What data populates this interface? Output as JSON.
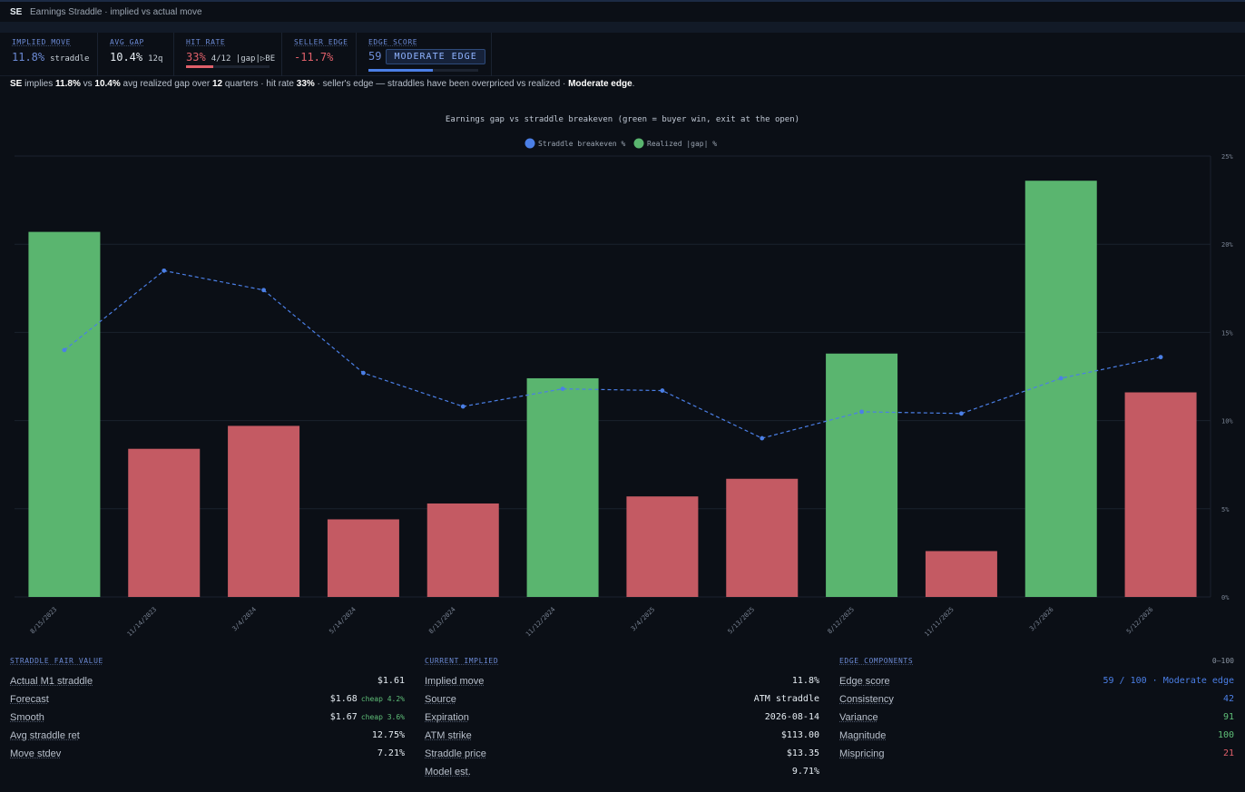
{
  "header": {
    "ticker": "SE",
    "title": "Earnings Straddle · implied vs actual move"
  },
  "metrics": {
    "implied_move": {
      "label": "IMPLIED MOVE",
      "value": "11.8%",
      "sub": "straddle"
    },
    "avg_gap": {
      "label": "AVG GAP",
      "value": "10.4%",
      "sub": "12q"
    },
    "hit_rate": {
      "label": "HIT RATE",
      "value": "33%",
      "sub": "4/12 |gap|▷BE",
      "fraction": 0.33
    },
    "seller_edge": {
      "label": "SELLER EDGE",
      "value": "-11.7%"
    },
    "edge_score": {
      "label": "EDGE SCORE",
      "value": "59",
      "badge": "MODERATE EDGE",
      "fraction": 0.59
    }
  },
  "summary": {
    "t1": "SE",
    "t2": " implies ",
    "t3": "11.8%",
    "t4": " vs ",
    "t5": "10.4%",
    "t6": " avg realized gap over ",
    "t7": "12",
    "t8": " quarters · hit rate ",
    "t9": "33%",
    "t10": " · seller's edge — straddles have been overpriced vs realized · ",
    "t11": "Moderate edge",
    "t12": "."
  },
  "colors": {
    "win": "#5ab56f",
    "loss": "#c45a63",
    "line": "#4b7fe6"
  },
  "chart_data": {
    "type": "bar",
    "title": "Earnings gap vs straddle breakeven (green = buyer win, exit at the open)",
    "categories": [
      "8/15/2023",
      "11/14/2023",
      "3/4/2024",
      "5/14/2024",
      "8/13/2024",
      "11/12/2024",
      "3/4/2025",
      "5/13/2025",
      "8/12/2025",
      "11/11/2025",
      "3/3/2026",
      "5/12/2026"
    ],
    "series": [
      {
        "name": "Straddle breakeven %",
        "type": "line",
        "values": [
          14.0,
          18.5,
          17.4,
          12.7,
          10.8,
          11.8,
          11.7,
          9.0,
          10.5,
          10.4,
          12.4,
          13.6
        ]
      },
      {
        "name": "Realized |gap| %",
        "type": "bar",
        "values": [
          20.7,
          8.4,
          9.7,
          4.4,
          5.3,
          12.4,
          5.7,
          6.7,
          13.8,
          2.6,
          23.6,
          11.6
        ]
      }
    ],
    "ylim": [
      0,
      25
    ],
    "yticks": [
      "0%",
      "5%",
      "10%",
      "15%",
      "20%",
      "25%"
    ],
    "legend": "top-center",
    "grid": true
  },
  "panels": {
    "fair_value": {
      "title": "STRADDLE FAIR VALUE",
      "rows": [
        {
          "k": "Actual M1 straddle",
          "v": "$1.61",
          "note": ""
        },
        {
          "k": "Forecast",
          "v": "$1.68",
          "note": "cheap 4.2%"
        },
        {
          "k": "Smooth",
          "v": "$1.67",
          "note": "cheap 3.6%"
        },
        {
          "k": "Avg straddle ret",
          "v": "12.75%",
          "note": ""
        },
        {
          "k": "Move stdev",
          "v": "7.21%",
          "note": ""
        }
      ]
    },
    "current": {
      "title": "CURRENT IMPLIED",
      "rows": [
        {
          "k": "Implied move",
          "v": "11.8%"
        },
        {
          "k": "Source",
          "v": "ATM straddle"
        },
        {
          "k": "Expiration",
          "v": "2026-08-14"
        },
        {
          "k": "ATM strike",
          "v": "$113.00"
        },
        {
          "k": "Straddle price",
          "v": "$13.35"
        },
        {
          "k": "Model est.",
          "v": "9.71%"
        }
      ]
    },
    "edge": {
      "title": "EDGE COMPONENTS",
      "note": "0–100",
      "rows": [
        {
          "k": "Edge score",
          "v": "59 / 100 · Moderate edge",
          "color": "#4b7fe6"
        },
        {
          "k": "Consistency",
          "v": "42",
          "color": "#4b7fe6"
        },
        {
          "k": "Variance",
          "v": "91",
          "color": "#5fbf78"
        },
        {
          "k": "Magnitude",
          "v": "100",
          "color": "#5fbf78"
        },
        {
          "k": "Mispricing",
          "v": "21",
          "color": "#e0606a"
        }
      ]
    }
  }
}
